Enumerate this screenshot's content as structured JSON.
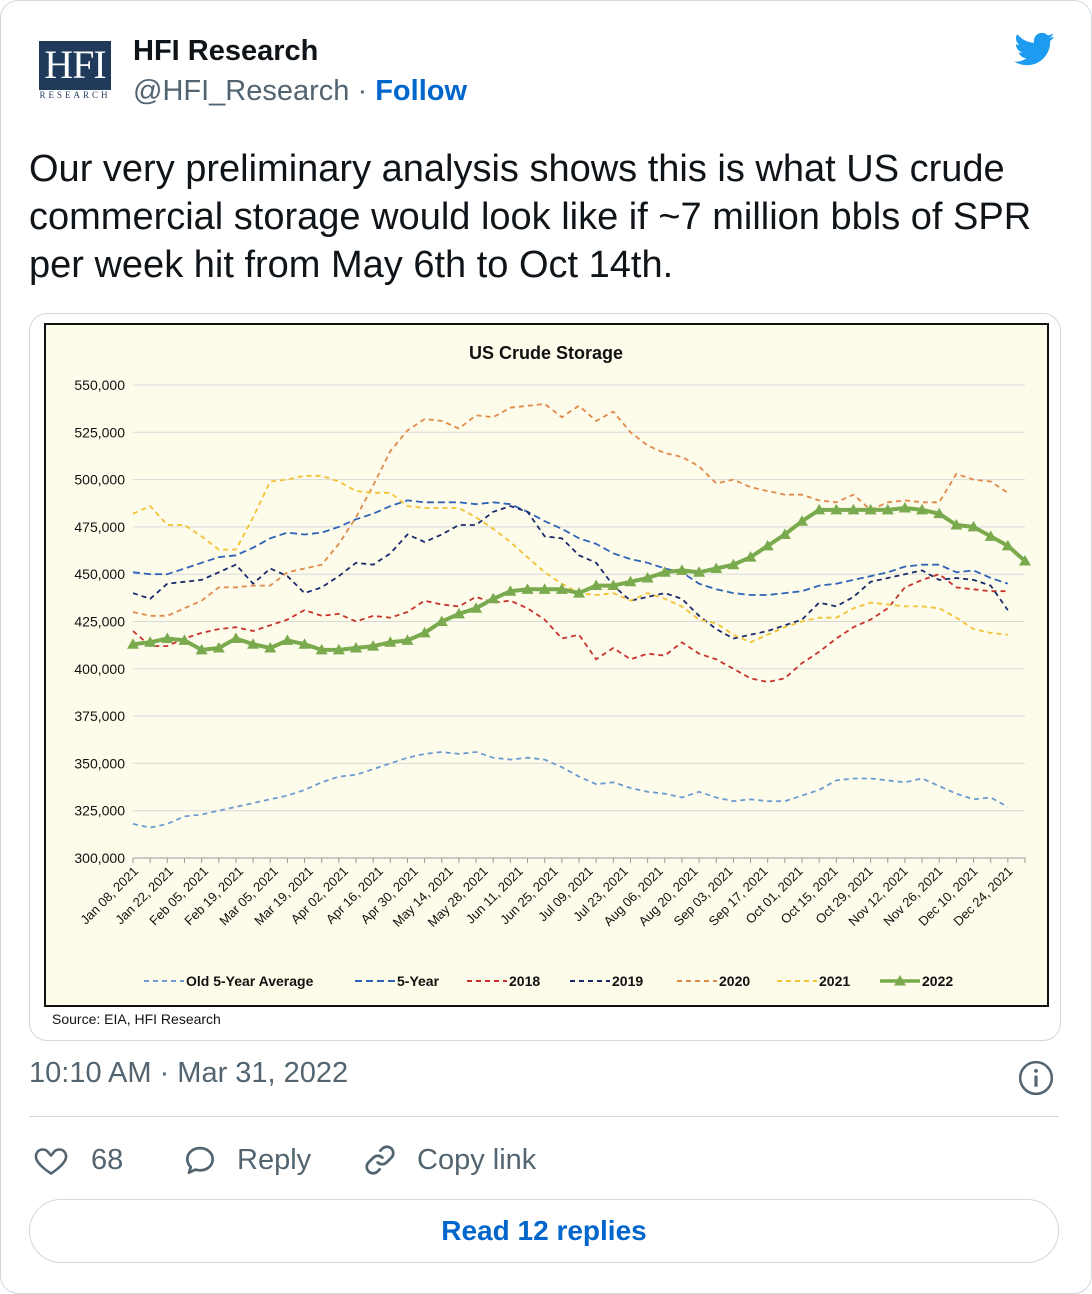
{
  "author": {
    "display_name": "HFI Research",
    "handle": "@HFI_Research",
    "separator": "·",
    "follow_label": "Follow",
    "avatar_text": "HFI",
    "avatar_subtext": "RESEARCH"
  },
  "tweet": {
    "text": "Our very preliminary analysis shows this is what US crude commercial storage would look like if ~7 million bbls of SPR per week hit from May 6th to Oct 14th.",
    "timestamp": "10:10 AM · Mar 31, 2022"
  },
  "actions": {
    "like_count": "68",
    "reply_label": "Reply",
    "copy_label": "Copy link",
    "read_replies_label": "Read 12 replies"
  },
  "colors": {
    "twitter_blue": "#1d9bf0",
    "link_blue": "#0066cc",
    "chart_bg": "#fdfbea"
  },
  "chart_data": {
    "type": "line",
    "title": "US Crude Storage",
    "source": "Source: EIA, HFI Research",
    "ylim": [
      300000,
      550000
    ],
    "yticks": [
      "550,000",
      "525,000",
      "500,000",
      "475,000",
      "450,000",
      "425,000",
      "400,000",
      "375,000",
      "350,000",
      "325,000",
      "300,000"
    ],
    "ytick_values": [
      550000,
      525000,
      500000,
      475000,
      450000,
      425000,
      400000,
      375000,
      350000,
      325000,
      300000
    ],
    "x_labels": [
      "Jan 08, 2021",
      "Jan 22, 2021",
      "Feb 05, 2021",
      "Feb 19, 2021",
      "Mar 05, 2021",
      "Mar 19, 2021",
      "Apr 02, 2021",
      "Apr 16, 2021",
      "Apr 30, 2021",
      "May 14, 2021",
      "May 28, 2021",
      "Jun 11, 2021",
      "Jun 25, 2021",
      "Jul 09, 2021",
      "Jul 23, 2021",
      "Aug 06, 2021",
      "Aug 20, 2021",
      "Sep 03, 2021",
      "Sep 17, 2021",
      "Oct 01, 2021",
      "Oct 15, 2021",
      "Oct 29, 2021",
      "Nov 12, 2021",
      "Nov 26, 2021",
      "Dec 10, 2021",
      "Dec 24, 2021"
    ],
    "grid": true,
    "legend_position": "bottom",
    "series": [
      {
        "name": "Old 5-Year Average",
        "color": "#6c9bd2",
        "dash": "5,4",
        "marker": false,
        "values": [
          318000,
          316000,
          318000,
          322000,
          323000,
          325000,
          327000,
          329000,
          331000,
          333000,
          336000,
          340000,
          343000,
          344000,
          347000,
          350000,
          353000,
          355000,
          356000,
          355000,
          356000,
          353000,
          352000,
          353000,
          352000,
          348000,
          343000,
          339000,
          340000,
          337000,
          335000,
          334000,
          332000,
          335000,
          332000,
          330000,
          331000,
          330000,
          330000,
          333000,
          336000,
          341000,
          342000,
          342000,
          341000,
          340000,
          342000,
          338000,
          334000,
          331000,
          332000,
          327000
        ]
      },
      {
        "name": "5-Year",
        "color": "#2f64b8",
        "dash": "7,4",
        "marker": false,
        "values": [
          451000,
          450000,
          450000,
          453000,
          456000,
          459000,
          460000,
          464000,
          469000,
          472000,
          471000,
          472000,
          475000,
          479000,
          482000,
          486000,
          489000,
          488000,
          488000,
          488000,
          487000,
          488000,
          487000,
          483000,
          478000,
          474000,
          469000,
          466000,
          461000,
          458000,
          456000,
          453000,
          451000,
          445000,
          442000,
          440000,
          439000,
          439000,
          440000,
          441000,
          444000,
          445000,
          447000,
          449000,
          451000,
          454000,
          455000,
          455000,
          451000,
          452000,
          448000,
          445000
        ]
      },
      {
        "name": "2018",
        "color": "#c8322d",
        "dash": "5,4",
        "marker": false,
        "values": [
          420000,
          412000,
          412000,
          416000,
          419000,
          421000,
          422000,
          420000,
          423000,
          426000,
          431000,
          428000,
          429000,
          425000,
          428000,
          427000,
          430000,
          436000,
          434000,
          433000,
          438000,
          435000,
          436000,
          432000,
          426000,
          416000,
          418000,
          405000,
          411000,
          405000,
          408000,
          407000,
          414000,
          408000,
          405000,
          400000,
          395000,
          393000,
          395000,
          403000,
          409000,
          416000,
          422000,
          426000,
          432000,
          443000,
          447000,
          450000,
          443000,
          442000,
          441000,
          441000
        ]
      },
      {
        "name": "2019",
        "color": "#1a2a6c",
        "dash": "5,4",
        "marker": false,
        "values": [
          440000,
          437000,
          445000,
          446000,
          447000,
          451000,
          455000,
          445000,
          453000,
          449000,
          440000,
          443000,
          449000,
          456000,
          455000,
          461000,
          471000,
          467000,
          471000,
          476000,
          476000,
          483000,
          486000,
          483000,
          470000,
          469000,
          460000,
          456000,
          444000,
          436000,
          438000,
          440000,
          437000,
          428000,
          421000,
          416000,
          418000,
          420000,
          423000,
          426000,
          435000,
          433000,
          438000,
          446000,
          448000,
          450000,
          452000,
          447000,
          448000,
          447000,
          444000,
          431000
        ]
      },
      {
        "name": "2020",
        "color": "#e08a4a",
        "dash": "5,4",
        "marker": false,
        "values": [
          430000,
          428000,
          428000,
          432000,
          436000,
          443000,
          443000,
          444000,
          444000,
          451000,
          453000,
          455000,
          466000,
          480000,
          497000,
          515000,
          526000,
          532000,
          531000,
          527000,
          534000,
          533000,
          538000,
          539000,
          540000,
          533000,
          539000,
          531000,
          536000,
          525000,
          518000,
          514000,
          512000,
          507000,
          498000,
          500000,
          496000,
          494000,
          492000,
          492000,
          489000,
          488000,
          492000,
          484000,
          488000,
          489000,
          488000,
          488000,
          503000,
          500000,
          499000,
          493000
        ]
      },
      {
        "name": "2021",
        "color": "#f2c233",
        "dash": "5,4",
        "marker": false,
        "values": [
          482000,
          486000,
          476000,
          476000,
          470000,
          463000,
          463000,
          480000,
          499000,
          500000,
          502000,
          502000,
          499000,
          494000,
          493000,
          493000,
          486000,
          485000,
          485000,
          485000,
          480000,
          474000,
          467000,
          459000,
          451000,
          445000,
          440000,
          439000,
          440000,
          436000,
          440000,
          437000,
          433000,
          426000,
          424000,
          418000,
          414000,
          418000,
          422000,
          425000,
          427000,
          427000,
          432000,
          435000,
          434000,
          433000,
          433000,
          432000,
          427000,
          421000,
          419000,
          418000
        ]
      },
      {
        "name": "2022",
        "color": "#7aaa4e",
        "dash": "",
        "marker": true,
        "values": [
          413000,
          414000,
          416000,
          415000,
          410000,
          411000,
          416000,
          413000,
          411000,
          415000,
          413000,
          410000,
          410000,
          411000,
          412000,
          414000,
          415000,
          419000,
          425000,
          429000,
          432000,
          437000,
          441000,
          442000,
          442000,
          442000,
          440000,
          444000,
          444000,
          446000,
          448000,
          451000,
          452000,
          451000,
          453000,
          455000,
          459000,
          465000,
          471000,
          478000,
          484000,
          484000,
          484000,
          484000,
          484000,
          485000,
          484000,
          482000,
          476000,
          475000,
          470000,
          465000,
          457000
        ]
      }
    ]
  }
}
